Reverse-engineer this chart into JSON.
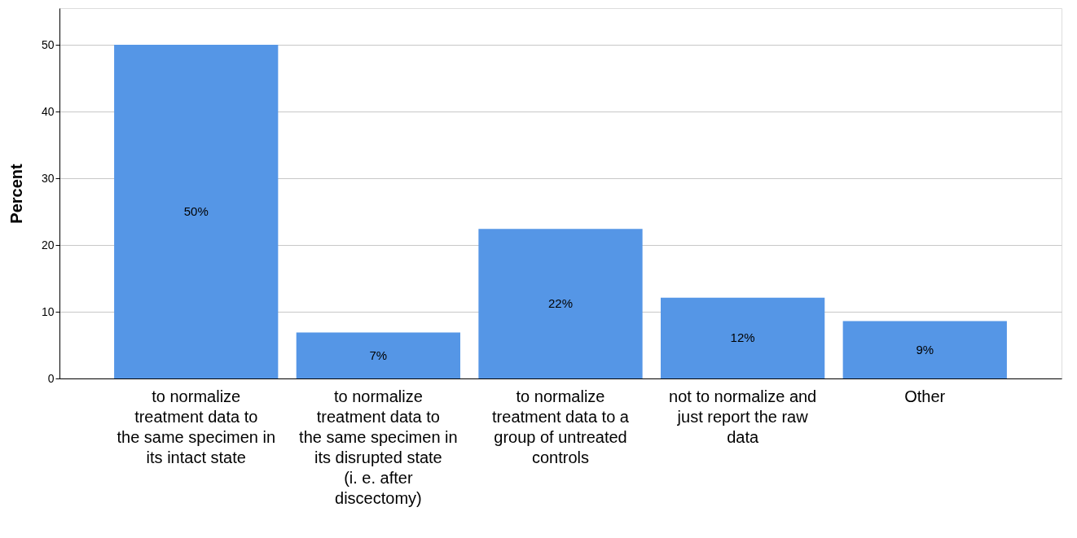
{
  "chart_data": {
    "type": "bar",
    "ylabel": "Percent",
    "categories": [
      "to normalize treatment data to the same specimen in its intact state",
      "to normalize treatment data to the same specimen in its disrupted state (i. e. after discectomy)",
      "to normalize treatment data to a group of untreated controls",
      "not to normalize and just report the raw data",
      "Other"
    ],
    "values": [
      50,
      6.9,
      22.4,
      12.1,
      8.6
    ],
    "value_labels": [
      "50%",
      "7%",
      "22%",
      "12%",
      "9%"
    ],
    "color": "#5596e6",
    "ylim": [
      0,
      55.5
    ],
    "yticks": [
      0,
      10,
      20,
      30,
      40,
      50
    ],
    "grid": "y"
  }
}
